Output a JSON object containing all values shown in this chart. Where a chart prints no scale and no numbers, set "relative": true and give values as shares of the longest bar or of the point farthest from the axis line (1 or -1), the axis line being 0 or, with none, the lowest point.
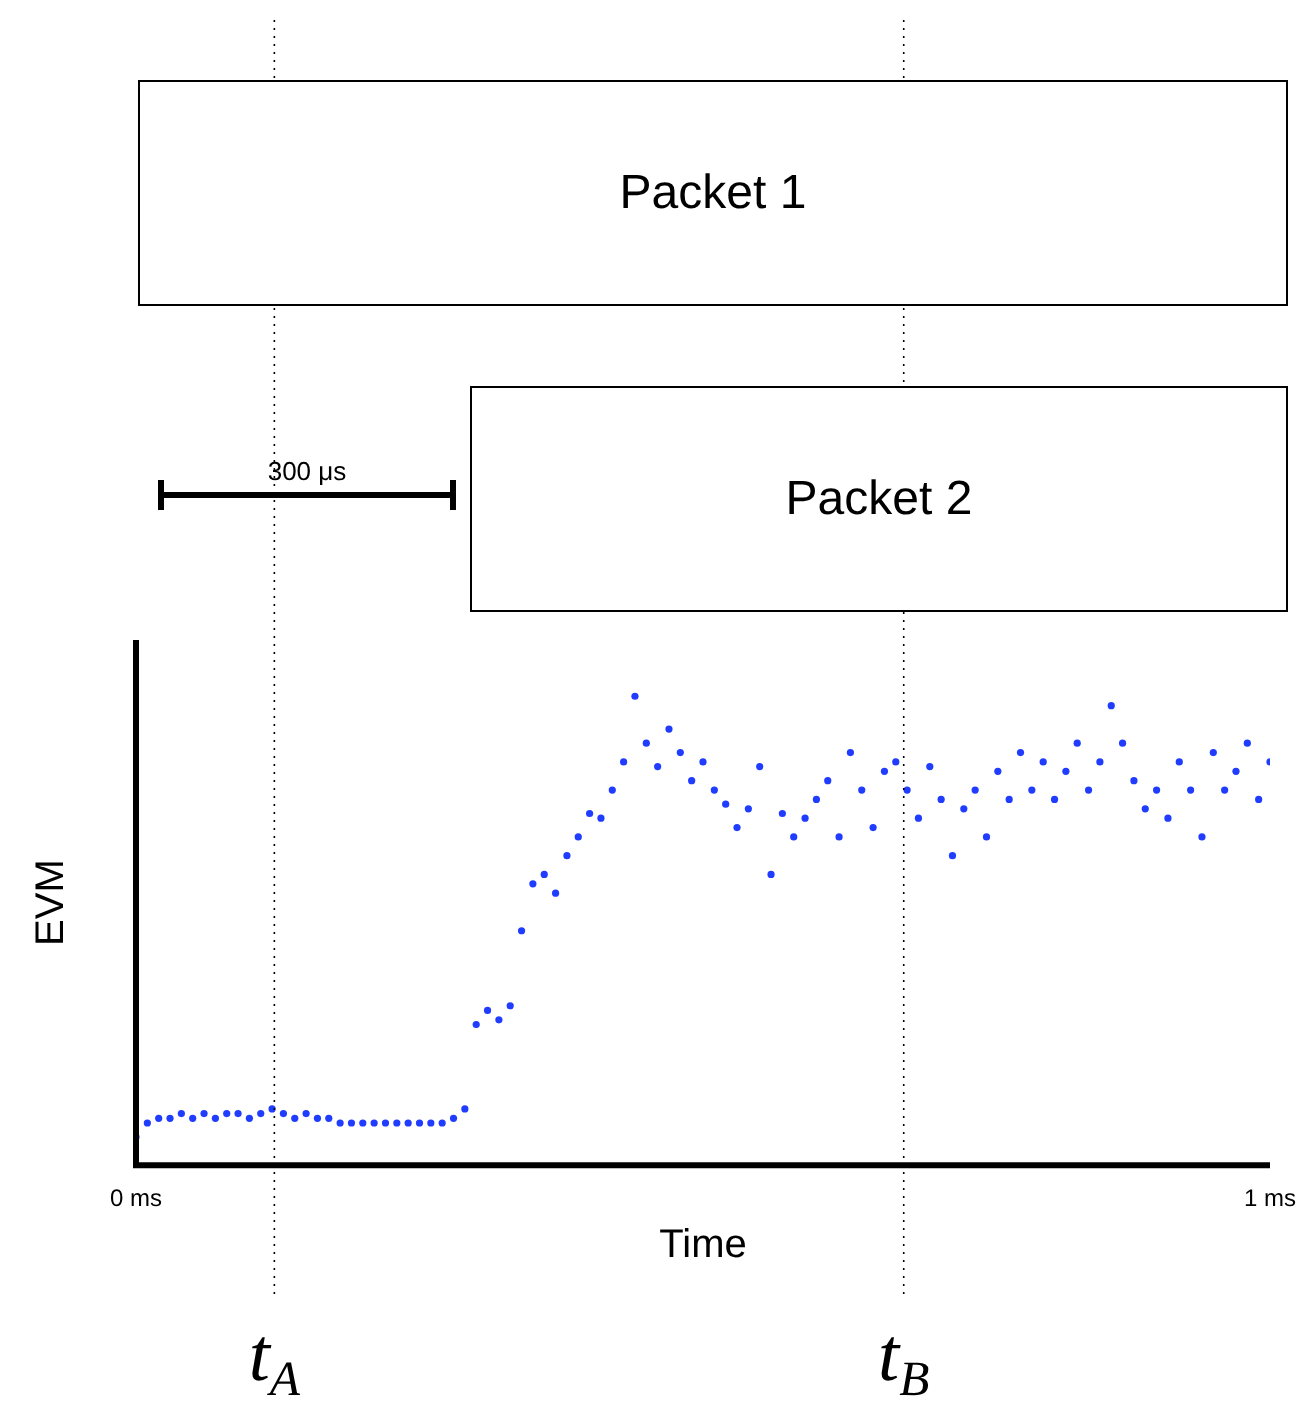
{
  "chart_data": {
    "type": "scatter",
    "xlabel": "Time",
    "ylabel": "EVM",
    "relative": true,
    "marker": "circle",
    "grid": false,
    "legend": false,
    "xlim": [
      0,
      1
    ],
    "xticks": [
      {
        "value": 0,
        "label": "0 ms"
      },
      {
        "value": 1,
        "label": "1 ms"
      }
    ],
    "x": [
      0,
      0.01,
      0.02,
      0.03,
      0.04,
      0.05,
      0.06,
      0.07,
      0.08,
      0.09,
      0.1,
      0.11,
      0.12,
      0.13,
      0.14,
      0.15,
      0.16,
      0.17,
      0.18,
      0.19,
      0.2,
      0.21,
      0.22,
      0.23,
      0.24,
      0.25,
      0.26,
      0.27,
      0.28,
      0.29,
      0.3,
      0.31,
      0.32,
      0.33,
      0.34,
      0.35,
      0.36,
      0.37,
      0.38,
      0.39,
      0.4,
      0.41,
      0.42,
      0.43,
      0.44,
      0.45,
      0.46,
      0.47,
      0.48,
      0.49,
      0.5,
      0.51,
      0.52,
      0.53,
      0.54,
      0.55,
      0.56,
      0.57,
      0.58,
      0.59,
      0.6,
      0.61,
      0.62,
      0.63,
      0.64,
      0.65,
      0.66,
      0.67,
      0.68,
      0.69,
      0.7,
      0.71,
      0.72,
      0.73,
      0.74,
      0.75,
      0.76,
      0.77,
      0.78,
      0.79,
      0.8,
      0.81,
      0.82,
      0.83,
      0.84,
      0.85,
      0.86,
      0.87,
      0.88,
      0.89,
      0.9,
      0.91,
      0.92,
      0.93,
      0.94,
      0.95,
      0.96,
      0.97,
      0.98,
      0.99,
      1
    ],
    "series": [
      {
        "color": "#1f3cff",
        "values": [
          0.06,
          0.09,
          0.1,
          0.1,
          0.11,
          0.1,
          0.11,
          0.1,
          0.11,
          0.11,
          0.1,
          0.11,
          0.12,
          0.11,
          0.1,
          0.11,
          0.1,
          0.1,
          0.09,
          0.09,
          0.09,
          0.09,
          0.09,
          0.09,
          0.09,
          0.09,
          0.09,
          0.09,
          0.1,
          0.12,
          0.3,
          0.33,
          0.31,
          0.34,
          0.5,
          0.6,
          0.62,
          0.58,
          0.66,
          0.7,
          0.75,
          0.74,
          0.8,
          0.86,
          1.0,
          0.9,
          0.85,
          0.93,
          0.88,
          0.82,
          0.86,
          0.8,
          0.77,
          0.72,
          0.76,
          0.85,
          0.62,
          0.75,
          0.7,
          0.74,
          0.78,
          0.82,
          0.7,
          0.88,
          0.8,
          0.72,
          0.84,
          0.86,
          0.8,
          0.74,
          0.85,
          0.78,
          0.66,
          0.76,
          0.8,
          0.7,
          0.84,
          0.78,
          0.88,
          0.8,
          0.86,
          0.78,
          0.84,
          0.9,
          0.8,
          0.86,
          0.98,
          0.9,
          0.82,
          0.76,
          0.8,
          0.74,
          0.86,
          0.8,
          0.7,
          0.88,
          0.8,
          0.84,
          0.9,
          0.78,
          0.86
        ]
      }
    ],
    "ref_lines": [
      {
        "axis": "x",
        "value": 0.122,
        "label": "t$_{A}$",
        "line_style": "dotted"
      },
      {
        "axis": "x",
        "value": 0.677,
        "label": "t$_{B}$",
        "line_style": "dotted"
      }
    ],
    "annotations": [
      "300 μs",
      "Packet 1",
      "Packet 2"
    ]
  }
}
